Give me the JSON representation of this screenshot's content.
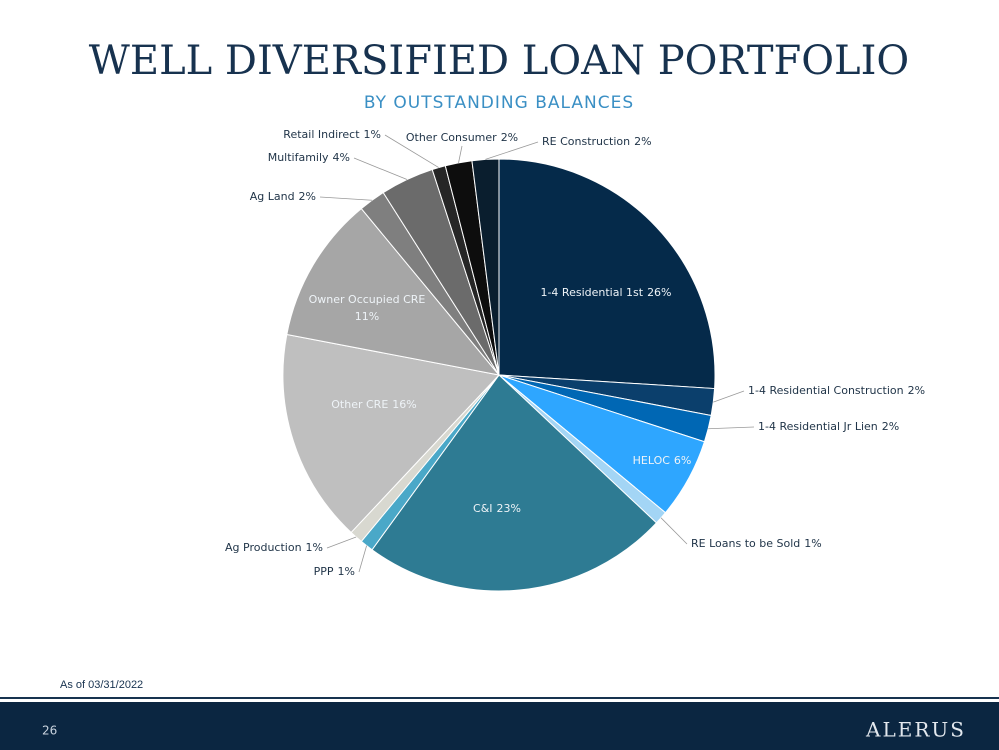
{
  "chart_data": {
    "type": "pie",
    "title": "WELL DIVERSIFIED LOAN PORTFOLIO",
    "subtitle": "BY OUTSTANDING BALANCES",
    "categories": [
      "1-4 Residential 1st",
      "1-4 Residential Construction",
      "1-4 Residential Jr Lien",
      "HELOC",
      "RE Loans to be Sold",
      "C&I",
      "PPP",
      "Ag Production",
      "Other CRE",
      "Owner Occupied CRE",
      "Ag Land",
      "Multifamily",
      "Retail Indirect",
      "Other Consumer",
      "RE Construction"
    ],
    "values": [
      26,
      2,
      2,
      6,
      1,
      23,
      1,
      1,
      16,
      11,
      2,
      4,
      1,
      2,
      2
    ],
    "value_labels": [
      "26%",
      "2%",
      "2%",
      "6%",
      "1%",
      "23%",
      "1%",
      "1%",
      "16%",
      "11%",
      "2%",
      "4%",
      "1%",
      "2%",
      "2%"
    ],
    "colors": [
      "#052a4a",
      "#0b3f6c",
      "#0067b4",
      "#2ea6ff",
      "#a3d5f5",
      "#2e7b93",
      "#4aa8c8",
      "#d8d8d0",
      "#bfbfbf",
      "#a6a6a6",
      "#7f7f7f",
      "#6b6b6b",
      "#262626",
      "#0d0d0d",
      "#0a1e2e"
    ]
  },
  "slide": {
    "footnote": "As of 03/31/2022",
    "page_number": "26",
    "logo": "ALERUS"
  }
}
